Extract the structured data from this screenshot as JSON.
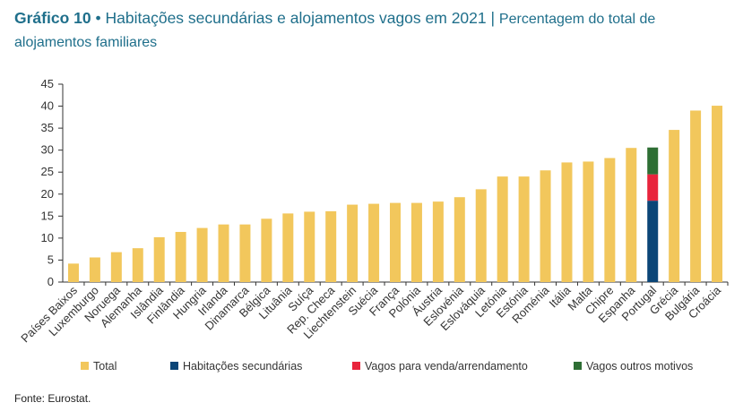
{
  "header": {
    "figure_number": "Gráfico 10",
    "bullet": "•",
    "title": "Habitações secundárias e alojamentos vagos em 2021",
    "separator": "|",
    "subtitle": "Percentagem do total de alojamentos familiares"
  },
  "source": "Fonte: Eurostat.",
  "colors": {
    "total": "#f2c75c",
    "secondary": "#0b4577",
    "vacant_sale_rent": "#e8243c",
    "vacant_other": "#2e6e34",
    "axis": "#333333"
  },
  "chart_data": {
    "type": "bar",
    "title": "Habitações secundárias e alojamentos vagos em 2021",
    "ylabel": "Percentagem do total de alojamentos familiares",
    "xlabel": "",
    "ylim": [
      0,
      45
    ],
    "yticks": [
      0,
      5,
      10,
      15,
      20,
      25,
      30,
      35,
      40,
      45
    ],
    "categories": [
      "Países Baixos",
      "Luxemburgo",
      "Noruega",
      "Alemanha",
      "Islândia",
      "Finlândia",
      "Hungria",
      "Irlanda",
      "Dinamarca",
      "Bélgica",
      "Lituânia",
      "Suíça",
      "Rep. Checa",
      "Liechtenstein",
      "Suécia",
      "França",
      "Polónia",
      "Áustria",
      "Eslovénia",
      "Eslováquia",
      "Letónia",
      "Estónia",
      "Roménia",
      "Itália",
      "Malta",
      "Chipre",
      "Espanha",
      "Portugal",
      "Grécia",
      "Bulgária",
      "Croácia"
    ],
    "series": [
      {
        "name": "Total",
        "values": [
          4.2,
          5.6,
          6.8,
          7.7,
          10.2,
          11.4,
          12.3,
          13.1,
          13.1,
          14.4,
          15.6,
          16.0,
          16.1,
          17.6,
          17.8,
          18.0,
          18.0,
          18.3,
          19.3,
          21.1,
          24.0,
          24.0,
          25.4,
          27.2,
          27.4,
          28.2,
          30.5,
          null,
          34.6,
          39.0,
          40.1
        ]
      },
      {
        "name": "Habitações secundárias",
        "values": [
          null,
          null,
          null,
          null,
          null,
          null,
          null,
          null,
          null,
          null,
          null,
          null,
          null,
          null,
          null,
          null,
          null,
          null,
          null,
          null,
          null,
          null,
          null,
          null,
          null,
          null,
          null,
          18.5,
          null,
          null,
          null
        ]
      },
      {
        "name": "Vagos para venda/arrendamento",
        "values": [
          null,
          null,
          null,
          null,
          null,
          null,
          null,
          null,
          null,
          null,
          null,
          null,
          null,
          null,
          null,
          null,
          null,
          null,
          null,
          null,
          null,
          null,
          null,
          null,
          null,
          null,
          null,
          6.0,
          null,
          null,
          null
        ]
      },
      {
        "name": "Vagos outros motivos",
        "values": [
          null,
          null,
          null,
          null,
          null,
          null,
          null,
          null,
          null,
          null,
          null,
          null,
          null,
          null,
          null,
          null,
          null,
          null,
          null,
          null,
          null,
          null,
          null,
          null,
          null,
          null,
          null,
          6.1,
          null,
          null,
          null
        ]
      }
    ],
    "legend": [
      "Total",
      "Habitações secundárias",
      "Vagos para venda/arrendamento",
      "Vagos outros motivos"
    ],
    "legend_position": "bottom",
    "grid": false
  }
}
